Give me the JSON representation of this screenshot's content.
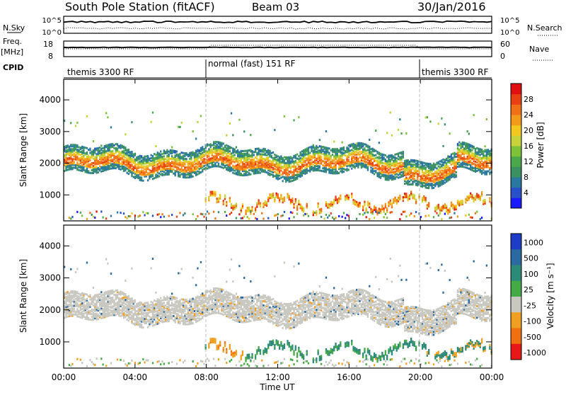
{
  "header": {
    "station": "South Pole Station (fitACF)",
    "beam": "Beam 03",
    "date": "30/Jan/2016"
  },
  "strips": {
    "nsky_label": "N.Sky",
    "nsky_ticks": [
      "10^5",
      "10^0"
    ],
    "nsearch_label": "N.Search",
    "freq_label": "Freq.",
    "freq_unit": "[MHz]",
    "freq_ticks": [
      "18",
      "8"
    ],
    "nave_label": "Nave",
    "nave_ticks": [
      "60",
      "0"
    ],
    "cpid_label": "CPID",
    "cpid_segments": [
      {
        "label": "themis 3300 RF",
        "start_h": 0,
        "end_h": 8
      },
      {
        "label": "normal (fast) 151 RF",
        "start_h": 8,
        "end_h": 20
      },
      {
        "label": "themis 3300 RF",
        "start_h": 20,
        "end_h": 24
      }
    ]
  },
  "chart_data": [
    {
      "type": "heatmap",
      "panel": "power",
      "ylabel": "Slant Range [km]",
      "yticks": [
        "1000",
        "2000",
        "3000",
        "4000"
      ],
      "ylim": [
        180,
        4650
      ],
      "xlim_hours": [
        0,
        24
      ],
      "colorbar": {
        "label": "Power [dB]",
        "ticks": [
          "4",
          "8",
          "12",
          "16",
          "20",
          "24",
          "28"
        ],
        "range": [
          0,
          32
        ],
        "colors": [
          "#1a1aff",
          "#2850c8",
          "#2a78a0",
          "#3a9060",
          "#4aa84a",
          "#7cc33a",
          "#c8d23a",
          "#f2c81e",
          "#f49a1a",
          "#f07018",
          "#e84014",
          "#e01010"
        ]
      },
      "bands": [
        {
          "name": "main-ionospheric-echo",
          "range_km": [
            1700,
            2500
          ],
          "hours": [
            0,
            24
          ]
        },
        {
          "name": "near-range-echo",
          "range_km": [
            300,
            900
          ],
          "hours": [
            8,
            24
          ]
        }
      ]
    },
    {
      "type": "heatmap",
      "panel": "velocity",
      "ylabel": "Slant Range [km]",
      "yticks": [
        "1000",
        "2000",
        "3000",
        "4000"
      ],
      "ylim": [
        180,
        4650
      ],
      "xlim_hours": [
        0,
        24
      ],
      "xlabel": "Time UT",
      "xticks": [
        "00:00",
        "04:00",
        "08:00",
        "12:00",
        "16:00",
        "20:00",
        "00:00"
      ],
      "colorbar": {
        "label": "Velocity [m s⁻¹]",
        "ticks": [
          "1000",
          "500",
          "100",
          "25",
          "-25",
          "-100",
          "-500",
          "-1000"
        ],
        "colors": [
          "#1e3cc8",
          "#2a6aa0",
          "#2e8a78",
          "#44aa44",
          "#c8c8c0",
          "#f0a020",
          "#f07010",
          "#e81818"
        ]
      },
      "bands": [
        {
          "name": "ground-scatter-band",
          "range_km": [
            1700,
            2500
          ],
          "hours": [
            0,
            24
          ]
        },
        {
          "name": "near-range-flows",
          "range_km": [
            300,
            900
          ],
          "hours": [
            8,
            24
          ]
        }
      ]
    }
  ]
}
